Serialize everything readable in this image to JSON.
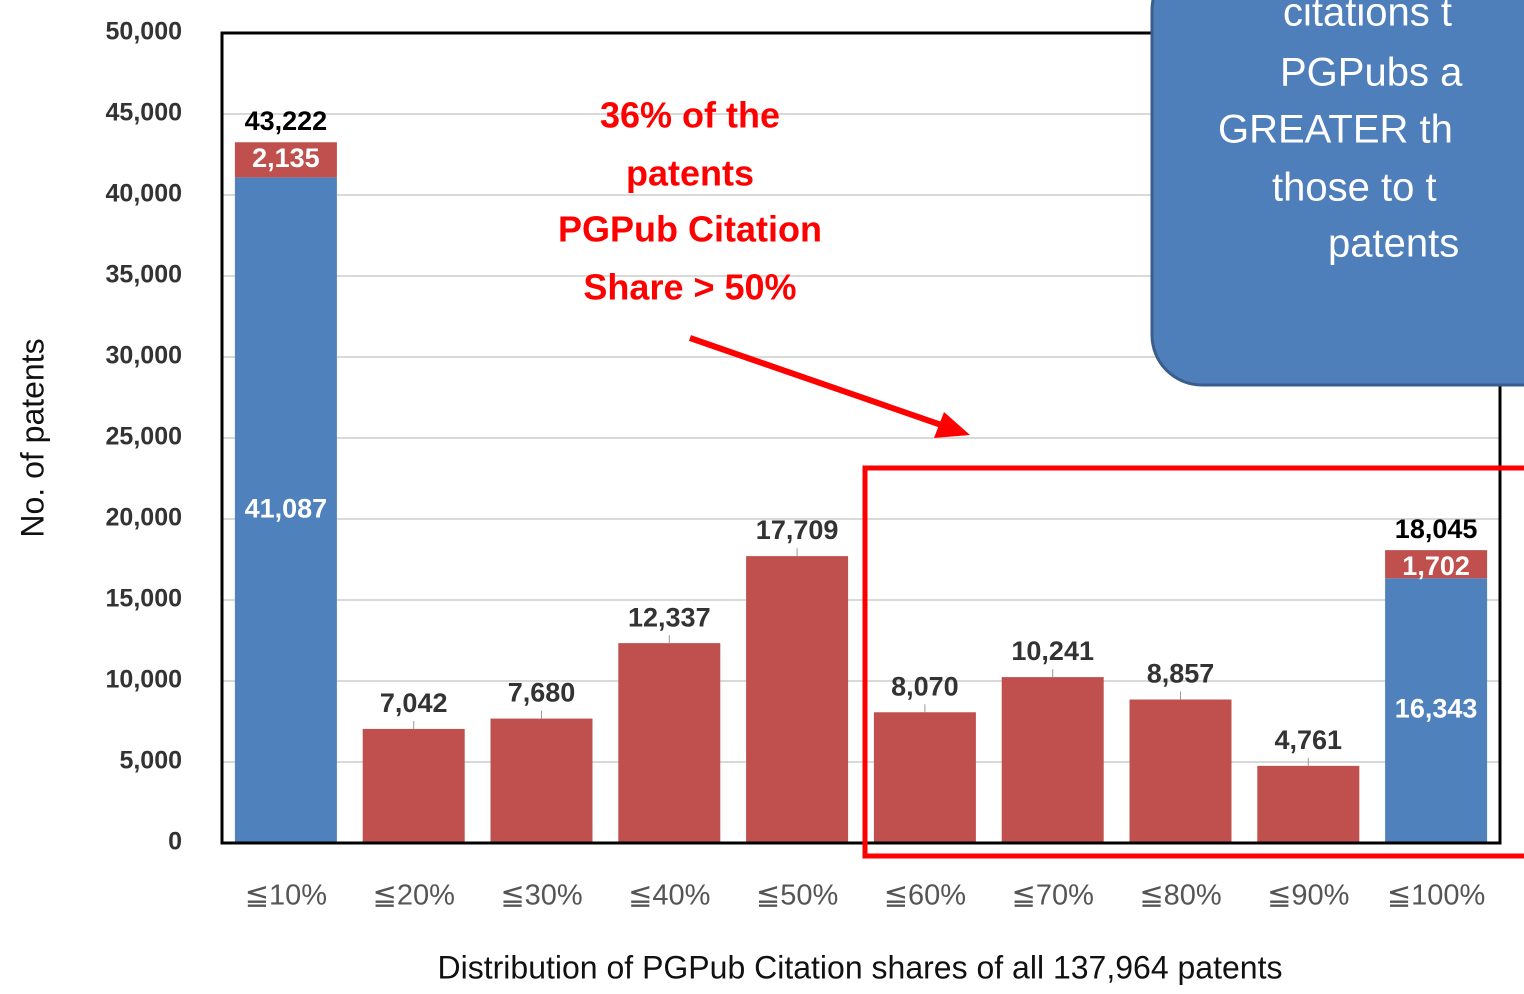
{
  "chart_data": {
    "type": "stacked_bar",
    "categories": [
      "≦10%",
      "≦20%",
      "≦30%",
      "≦40%",
      "≦50%",
      "≦60%",
      "≦70%",
      "≦80%",
      "≦90%",
      "≦100%"
    ],
    "series": [
      {
        "color": "#4f81bd",
        "values": [
          41087,
          null,
          null,
          null,
          null,
          null,
          null,
          null,
          null,
          16343
        ],
        "value_labels": [
          "41,087",
          null,
          null,
          null,
          null,
          null,
          null,
          null,
          null,
          "16,343"
        ]
      },
      {
        "color": "#c0504d",
        "values": [
          2135,
          7042,
          7680,
          12337,
          17709,
          8070,
          10241,
          8857,
          4761,
          1702
        ],
        "value_labels": [
          "2,135",
          "7,042",
          "7,680",
          "12,337",
          "17,709",
          "8,070",
          "10,241",
          "8,857",
          "4,761",
          "1,702"
        ]
      }
    ],
    "totals": [
      43222,
      null,
      null,
      null,
      null,
      null,
      null,
      null,
      null,
      18045
    ],
    "total_labels": [
      "43,222",
      null,
      null,
      null,
      null,
      null,
      null,
      null,
      null,
      "18,045"
    ],
    "ylim": [
      0,
      50000
    ],
    "yticks": [
      {
        "value": 0,
        "label": "0"
      },
      {
        "value": 5000,
        "label": "5,000"
      },
      {
        "value": 10000,
        "label": "10,000"
      },
      {
        "value": 15000,
        "label": "15,000"
      },
      {
        "value": 20000,
        "label": "20,000"
      },
      {
        "value": 25000,
        "label": "25,000"
      },
      {
        "value": 30000,
        "label": "30,000"
      },
      {
        "value": 35000,
        "label": "35,000"
      },
      {
        "value": 40000,
        "label": "40,000"
      },
      {
        "value": 45000,
        "label": "45,000"
      },
      {
        "value": 50000,
        "label": "50,000"
      }
    ],
    "grid": true,
    "y_label": "No. of patents",
    "x_label": "Distribution of PGPub Citation shares of all 137,964 patents",
    "annotation": [
      "36% of the",
      "patents",
      "PGPub Citation",
      "Share > 50%"
    ],
    "callout": [
      "citations t",
      "PGPubs a",
      "GREATER th",
      "those to t",
      "patents"
    ]
  }
}
